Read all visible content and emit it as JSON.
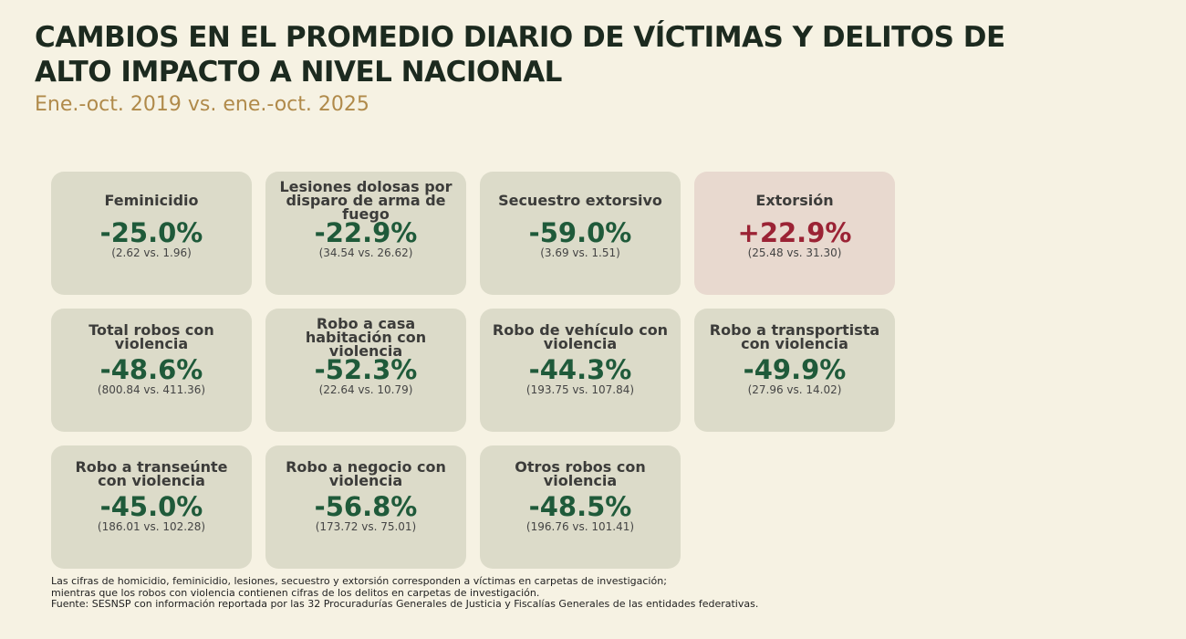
{
  "header": {
    "title": "CAMBIOS EN EL PROMEDIO DIARIO DE VÍCTIMAS Y DELITOS DE ALTO IMPACTO A NIVEL NACIONAL",
    "subtitle": "Ene.-oct. 2019 vs. ene.-oct. 2025"
  },
  "cards": [
    {
      "label": "Feminicidio",
      "change": "-25.0%",
      "comparison": "(2.62 vs. 1.96)",
      "color": "#1f5a3a",
      "background": "#dcdbc9"
    },
    {
      "label": "Lesiones dolosas por disparo de arma de fuego",
      "change": "-22.9%",
      "comparison": "(34.54 vs. 26.62)",
      "color": "#1f5a3a",
      "background": "#dcdbc9"
    },
    {
      "label": "Secuestro extorsivo",
      "change": "-59.0%",
      "comparison": "(3.69 vs. 1.51)",
      "color": "#1f5a3a",
      "background": "#dcdbc9"
    },
    {
      "label": "Extorsión",
      "change": "+22.9%",
      "comparison": "(25.48 vs. 31.30)",
      "color": "#9b2335",
      "background": "#e8d9cf"
    },
    {
      "label": "Total robos con violencia",
      "change": "-48.6%",
      "comparison": "(800.84 vs. 411.36)",
      "color": "#1f5a3a",
      "background": "#dcdbc9"
    },
    {
      "label": "Robo a casa habitación con violencia",
      "change": "-52.3%",
      "comparison": "(22.64 vs. 10.79)",
      "color": "#1f5a3a",
      "background": "#dcdbc9"
    },
    {
      "label": "Robo de vehículo con violencia",
      "change": "-44.3%",
      "comparison": "(193.75 vs. 107.84)",
      "color": "#1f5a3a",
      "background": "#dcdbc9"
    },
    {
      "label": "Robo a transportista con violencia",
      "change": "-49.9%",
      "comparison": "(27.96 vs. 14.02)",
      "color": "#1f5a3a",
      "background": "#dcdbc9"
    },
    {
      "label": "Robo a transeúnte con violencia",
      "change": "-45.0%",
      "comparison": "(186.01 vs. 102.28)",
      "color": "#1f5a3a",
      "background": "#dcdbc9"
    },
    {
      "label": "Robo a negocio con violencia",
      "change": "-56.8%",
      "comparison": "(173.72 vs. 75.01)",
      "color": "#1f5a3a",
      "background": "#dcdbc9"
    },
    {
      "label": "Otros robos con violencia",
      "change": "-48.5%",
      "comparison": "(196.76 vs. 101.41)",
      "color": "#1f5a3a",
      "background": "#dcdbc9"
    }
  ],
  "footer": {
    "notes": [
      "Las cifras de homicidio, feminicidio, lesiones, secuestro y extorsión corresponden a víctimas en carpetas de investigación;",
      "mientras que los robos con violencia contienen cifras de los delitos en carpetas de investigación.",
      "Fuente: SESNSP con información reportada por las 32 Procuradurías Generales de Justicia y Fiscalías Generales de las entidades federativas."
    ]
  }
}
